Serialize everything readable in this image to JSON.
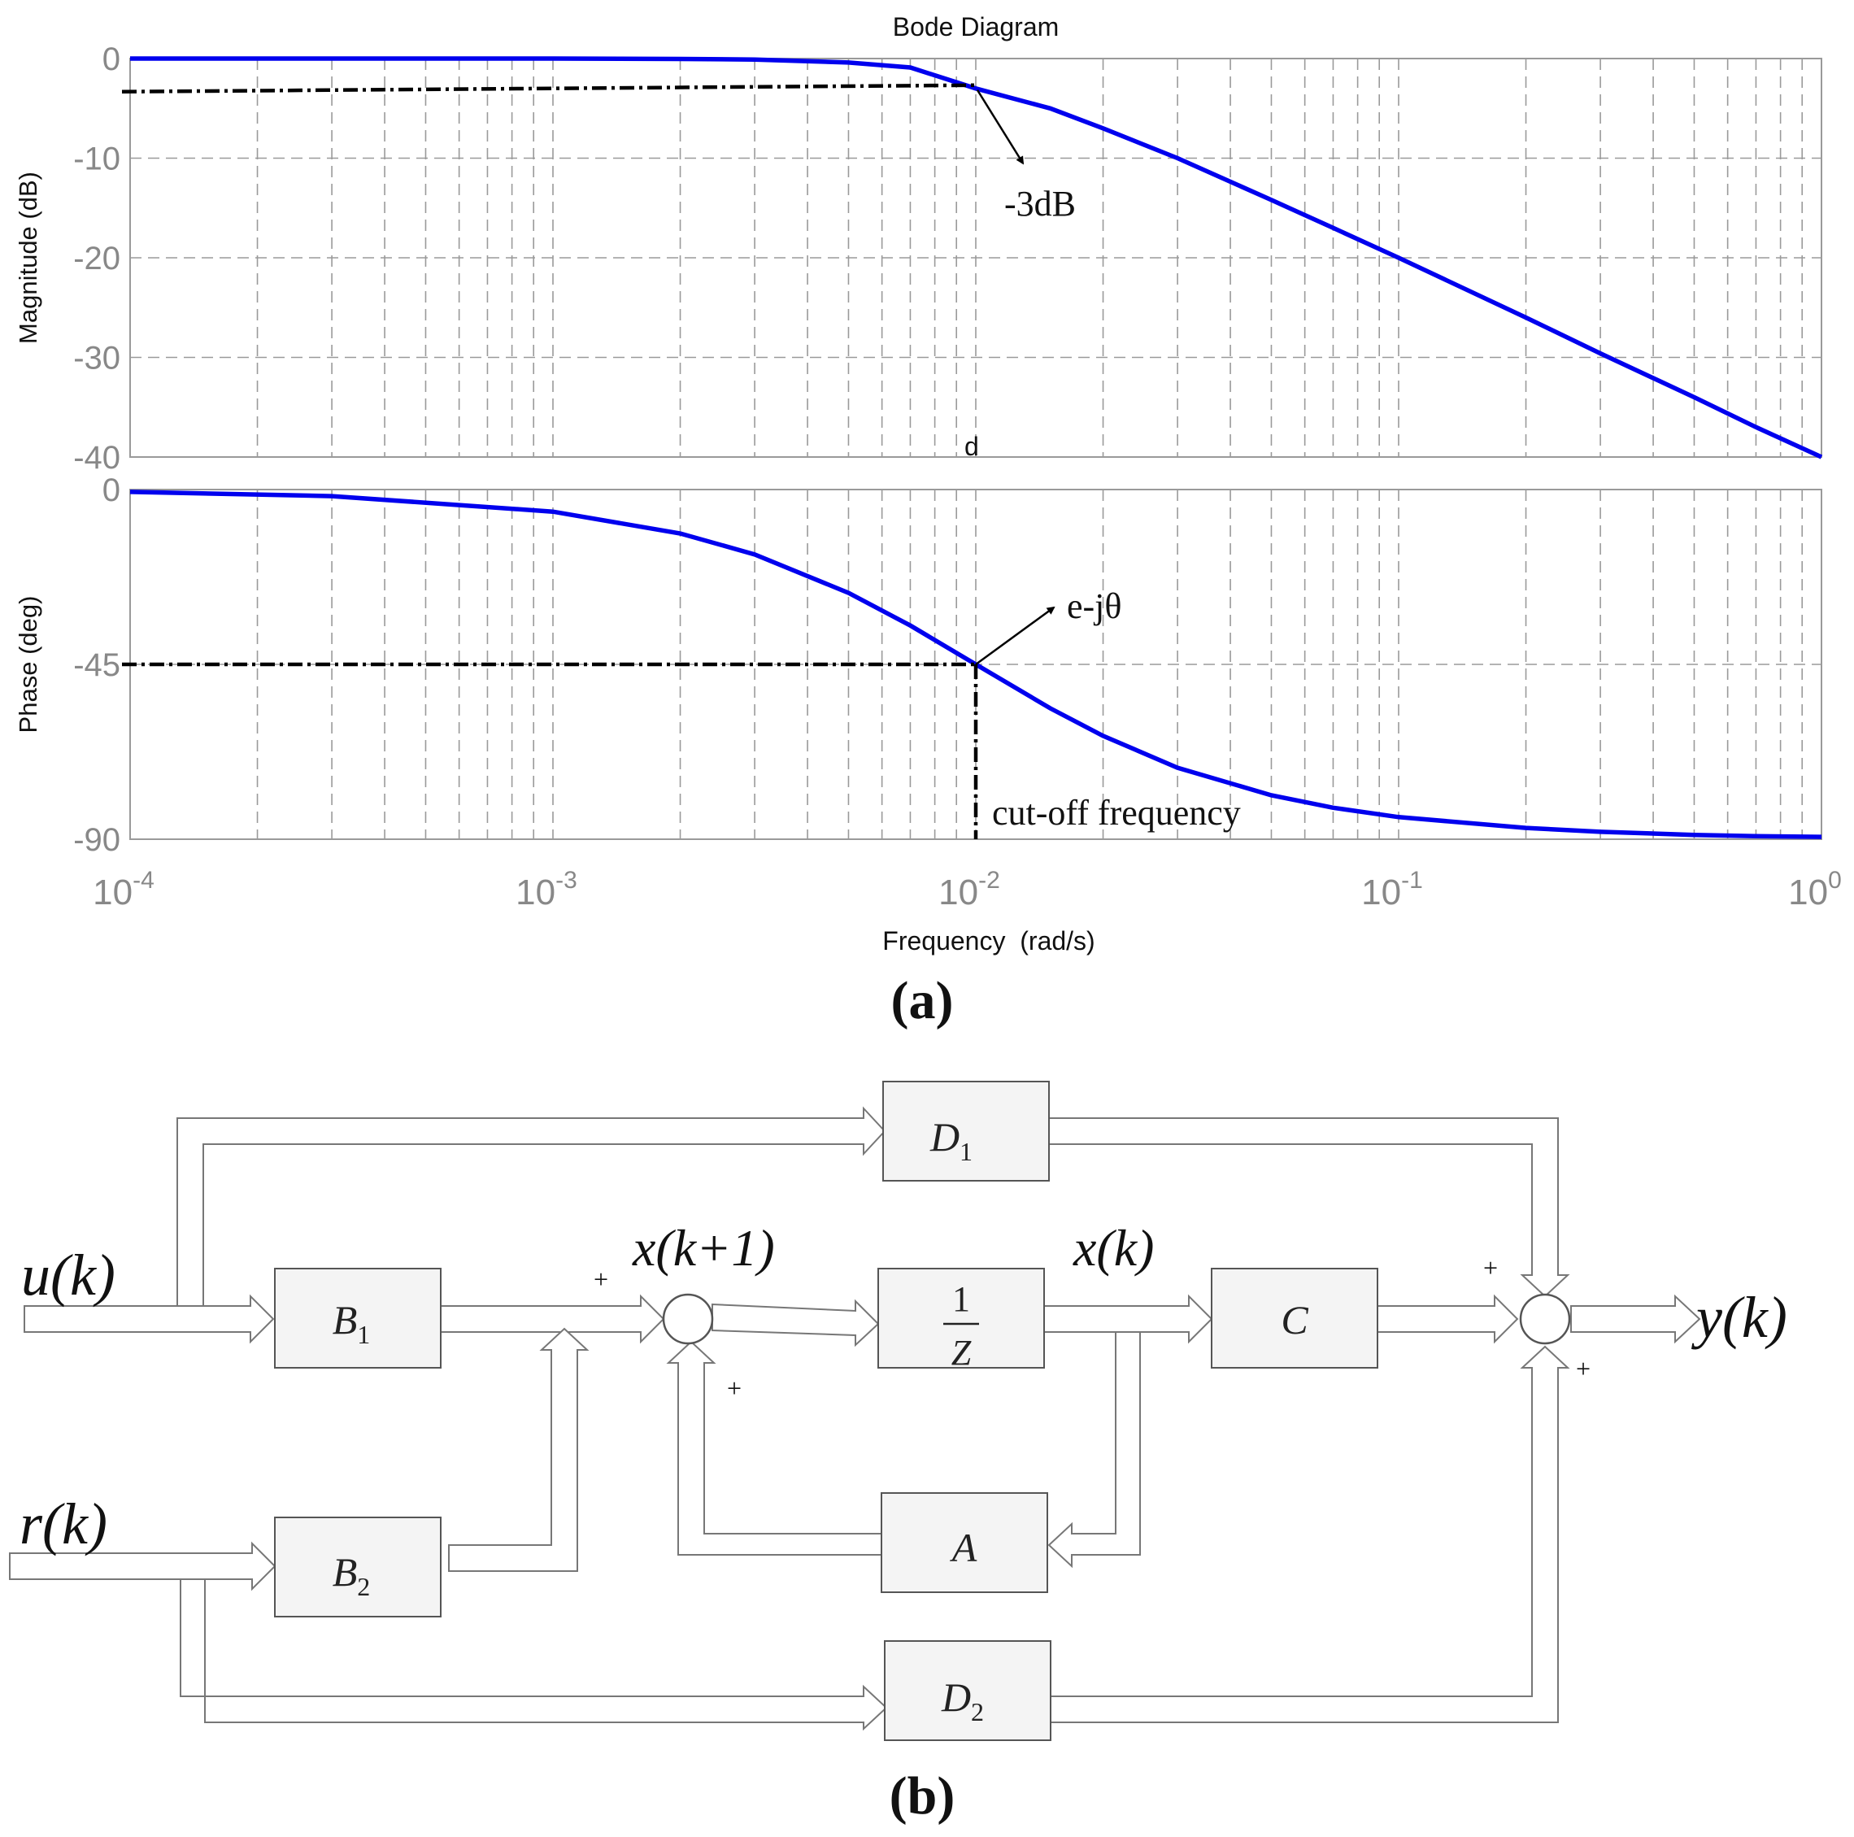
{
  "figure": {
    "panel_a_label": "(a)",
    "panel_b_label": "(b)"
  },
  "chart_data": {
    "type": "line",
    "title": "Bode Diagram",
    "xlabel": "Frequency  (rad/s)",
    "x_scale": "log",
    "xlim": [
      0.0001,
      1
    ],
    "x_ticks": [
      {
        "base": "10",
        "exp": "-4"
      },
      {
        "base": "10",
        "exp": "-3"
      },
      {
        "base": "10",
        "exp": "-2"
      },
      {
        "base": "10",
        "exp": "-1"
      },
      {
        "base": "10",
        "exp": "0"
      }
    ],
    "grid": true,
    "magnitude": {
      "ylabel": "Magnitude (dB)",
      "ylim": [
        -40,
        0
      ],
      "y_ticks": [
        "0",
        "-10",
        "-20",
        "-30",
        "-40"
      ],
      "series": [
        {
          "color": "#0000ee",
          "x": [
            0.0001,
            0.0003,
            0.001,
            0.002,
            0.003,
            0.005,
            0.007,
            0.01,
            0.015,
            0.02,
            0.03,
            0.05,
            0.07,
            0.1,
            0.2,
            0.3,
            0.5,
            0.7,
            1.0
          ],
          "y": [
            0,
            0,
            0,
            -0.04,
            -0.1,
            -0.4,
            -0.9,
            -3.0,
            -5.0,
            -7.0,
            -10.0,
            -14.2,
            -17.0,
            -20.0,
            -26.0,
            -29.6,
            -34.0,
            -37.0,
            -40.0
          ]
        }
      ],
      "reference": {
        "x": 0.01,
        "y": -3
      },
      "annotations": [
        {
          "text": "-3dB"
        },
        {
          "text": "d"
        }
      ]
    },
    "phase": {
      "ylabel": "Phase (deg)",
      "ylim": [
        -90,
        0
      ],
      "y_ticks": [
        "0",
        "-45",
        "-90"
      ],
      "series": [
        {
          "color": "#0000ee",
          "x": [
            0.0001,
            0.0003,
            0.001,
            0.002,
            0.003,
            0.005,
            0.007,
            0.01,
            0.015,
            0.02,
            0.03,
            0.05,
            0.07,
            0.1,
            0.2,
            0.3,
            0.5,
            0.7,
            1.0
          ],
          "y": [
            -0.6,
            -1.7,
            -5.7,
            -11.3,
            -16.7,
            -26.6,
            -35.0,
            -45.0,
            -56.3,
            -63.4,
            -71.6,
            -78.7,
            -81.9,
            -84.3,
            -87.1,
            -88.1,
            -88.9,
            -89.2,
            -89.4
          ]
        }
      ],
      "reference": {
        "x": 0.01,
        "y": -45
      },
      "annotations": [
        {
          "text": "e-jθ"
        },
        {
          "text": "cut-off frequency"
        }
      ]
    }
  },
  "diagram": {
    "blocks": {
      "d1": {
        "main": "D",
        "sub": "1"
      },
      "b1": {
        "main": "B",
        "sub": "1"
      },
      "b2": {
        "main": "B",
        "sub": "2"
      },
      "z": {
        "num": "1",
        "den": "Z"
      },
      "c": {
        "main": "C"
      },
      "a": {
        "main": "A"
      },
      "d2": {
        "main": "D",
        "sub": "2"
      }
    },
    "signals": {
      "u": "u(k)",
      "r": "r(k)",
      "x_next": "x(k+1)",
      "x": "x(k)",
      "y": "y(k)"
    },
    "signs": {
      "plus": "+"
    }
  }
}
